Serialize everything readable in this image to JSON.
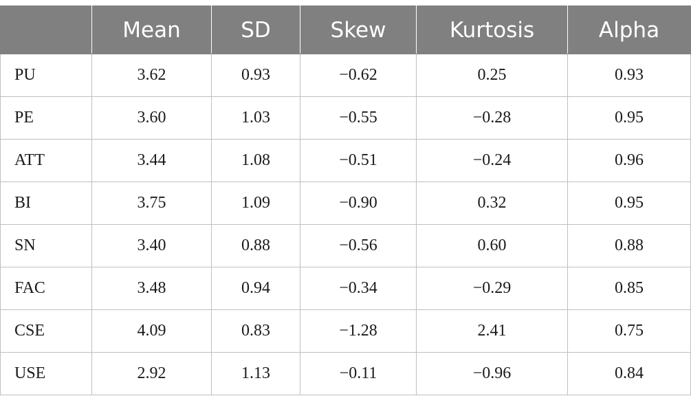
{
  "table": {
    "headers": [
      "",
      "Mean",
      "SD",
      "Skew",
      "Kurtosis",
      "Alpha"
    ],
    "rows": [
      [
        "PU",
        "3.62",
        "0.93",
        "−0.62",
        "0.25",
        "0.93"
      ],
      [
        "PE",
        "3.60",
        "1.03",
        "−0.55",
        "−0.28",
        "0.95"
      ],
      [
        "ATT",
        "3.44",
        "1.08",
        "−0.51",
        "−0.24",
        "0.96"
      ],
      [
        "BI",
        "3.75",
        "1.09",
        "−0.90",
        "0.32",
        "0.95"
      ],
      [
        "SN",
        "3.40",
        "0.88",
        "−0.56",
        "0.60",
        "0.88"
      ],
      [
        "FAC",
        "3.48",
        "0.94",
        "−0.34",
        "−0.29",
        "0.85"
      ],
      [
        "CSE",
        "4.09",
        "0.83",
        "−1.28",
        "2.41",
        "0.75"
      ],
      [
        "USE",
        "2.92",
        "1.13",
        "−0.11",
        "−0.96",
        "0.84"
      ]
    ]
  },
  "colors": {
    "header_bg": "#808080",
    "header_text": "#ffffff",
    "grid": "#bfbfbf"
  }
}
